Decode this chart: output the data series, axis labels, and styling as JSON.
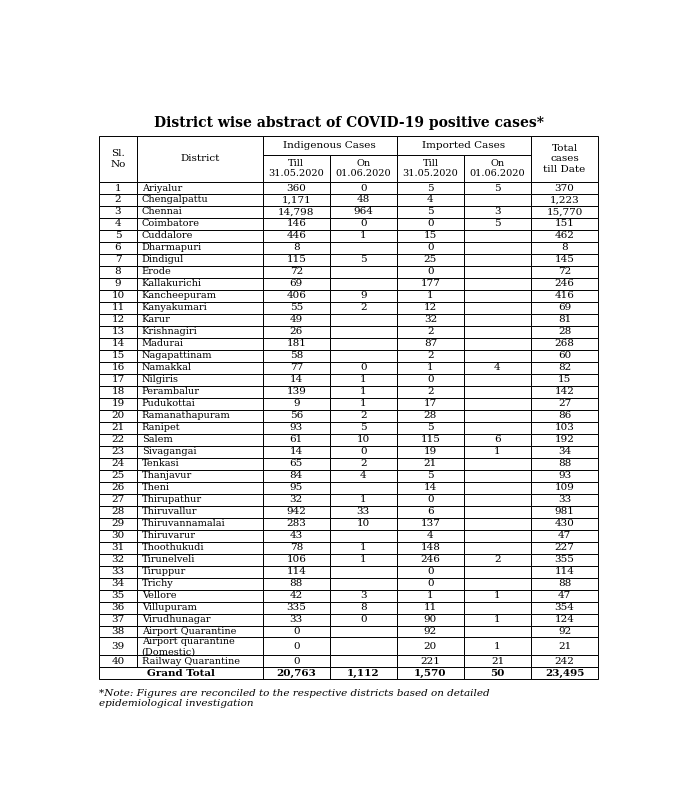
{
  "title": "District wise abstract of COVID-19 positive cases*",
  "note": "*Note: Figures are reconciled to the respective districts based on detailed\nepidemiological investigation",
  "col_headers": {
    "sl_no": "Sl.\nNo",
    "district": "District",
    "indigenous_cases": "Indigenous Cases",
    "imported_cases": "Imported Cases",
    "total": "Total\ncases\ntill Date",
    "till_indigenous": "Till\n31.05.2020",
    "on_indigenous": "On\n01.06.2020",
    "till_imported": "Till\n31.05.2020",
    "on_imported": "On\n01.06.2020"
  },
  "rows": [
    [
      1,
      "Ariyalur",
      "360",
      "0",
      "5",
      "5",
      "370"
    ],
    [
      2,
      "Chengalpattu",
      "1,171",
      "48",
      "4",
      "",
      "1,223"
    ],
    [
      3,
      "Chennai",
      "14,798",
      "964",
      "5",
      "3",
      "15,770"
    ],
    [
      4,
      "Coimbatore",
      "146",
      "0",
      "0",
      "5",
      "151"
    ],
    [
      5,
      "Cuddalore",
      "446",
      "1",
      "15",
      "",
      "462"
    ],
    [
      6,
      "Dharmapuri",
      "8",
      "",
      "0",
      "",
      "8"
    ],
    [
      7,
      "Dindigul",
      "115",
      "5",
      "25",
      "",
      "145"
    ],
    [
      8,
      "Erode",
      "72",
      "",
      "0",
      "",
      "72"
    ],
    [
      9,
      "Kallakurichi",
      "69",
      "",
      "177",
      "",
      "246"
    ],
    [
      10,
      "Kancheepuram",
      "406",
      "9",
      "1",
      "",
      "416"
    ],
    [
      11,
      "Kanyakumari",
      "55",
      "2",
      "12",
      "",
      "69"
    ],
    [
      12,
      "Karur",
      "49",
      "",
      "32",
      "",
      "81"
    ],
    [
      13,
      "Krishnagiri",
      "26",
      "",
      "2",
      "",
      "28"
    ],
    [
      14,
      "Madurai",
      "181",
      "",
      "87",
      "",
      "268"
    ],
    [
      15,
      "Nagapattinam",
      "58",
      "",
      "2",
      "",
      "60"
    ],
    [
      16,
      "Namakkal",
      "77",
      "0",
      "1",
      "4",
      "82"
    ],
    [
      17,
      "Nilgiris",
      "14",
      "1",
      "0",
      "",
      "15"
    ],
    [
      18,
      "Perambalur",
      "139",
      "1",
      "2",
      "",
      "142"
    ],
    [
      19,
      "Pudukottai",
      "9",
      "1",
      "17",
      "",
      "27"
    ],
    [
      20,
      "Ramanathapuram",
      "56",
      "2",
      "28",
      "",
      "86"
    ],
    [
      21,
      "Ranipet",
      "93",
      "5",
      "5",
      "",
      "103"
    ],
    [
      22,
      "Salem",
      "61",
      "10",
      "115",
      "6",
      "192"
    ],
    [
      23,
      "Sivagangai",
      "14",
      "0",
      "19",
      "1",
      "34"
    ],
    [
      24,
      "Tenkasi",
      "65",
      "2",
      "21",
      "",
      "88"
    ],
    [
      25,
      "Thanjavur",
      "84",
      "4",
      "5",
      "",
      "93"
    ],
    [
      26,
      "Theni",
      "95",
      "",
      "14",
      "",
      "109"
    ],
    [
      27,
      "Thirupathur",
      "32",
      "1",
      "0",
      "",
      "33"
    ],
    [
      28,
      "Thiruvallur",
      "942",
      "33",
      "6",
      "",
      "981"
    ],
    [
      29,
      "Thiruvannamalai",
      "283",
      "10",
      "137",
      "",
      "430"
    ],
    [
      30,
      "Thiruvarur",
      "43",
      "",
      "4",
      "",
      "47"
    ],
    [
      31,
      "Thoothukudi",
      "78",
      "1",
      "148",
      "",
      "227"
    ],
    [
      32,
      "Tirunelveli",
      "106",
      "1",
      "246",
      "2",
      "355"
    ],
    [
      33,
      "Tiruppur",
      "114",
      "",
      "0",
      "",
      "114"
    ],
    [
      34,
      "Trichy",
      "88",
      "",
      "0",
      "",
      "88"
    ],
    [
      35,
      "Vellore",
      "42",
      "3",
      "1",
      "1",
      "47"
    ],
    [
      36,
      "Villupuram",
      "335",
      "8",
      "11",
      "",
      "354"
    ],
    [
      37,
      "Virudhunagar",
      "33",
      "0",
      "90",
      "1",
      "124"
    ],
    [
      38,
      "Airport Quarantine",
      "0",
      "",
      "92",
      "",
      "92"
    ],
    [
      39,
      "Airport quarantine\n(Domestic)",
      "0",
      "",
      "20",
      "1",
      "21"
    ],
    [
      40,
      "Railway Quarantine",
      "0",
      "",
      "221",
      "21",
      "242"
    ]
  ],
  "grand_total": [
    "",
    "Grand Total",
    "20,763",
    "1,112",
    "1,570",
    "50",
    "23,495"
  ],
  "bg_color": "#ffffff",
  "text_color": "#000000",
  "title_fontsize": 10,
  "table_fontsize": 7.5,
  "note_fontsize": 7.5
}
